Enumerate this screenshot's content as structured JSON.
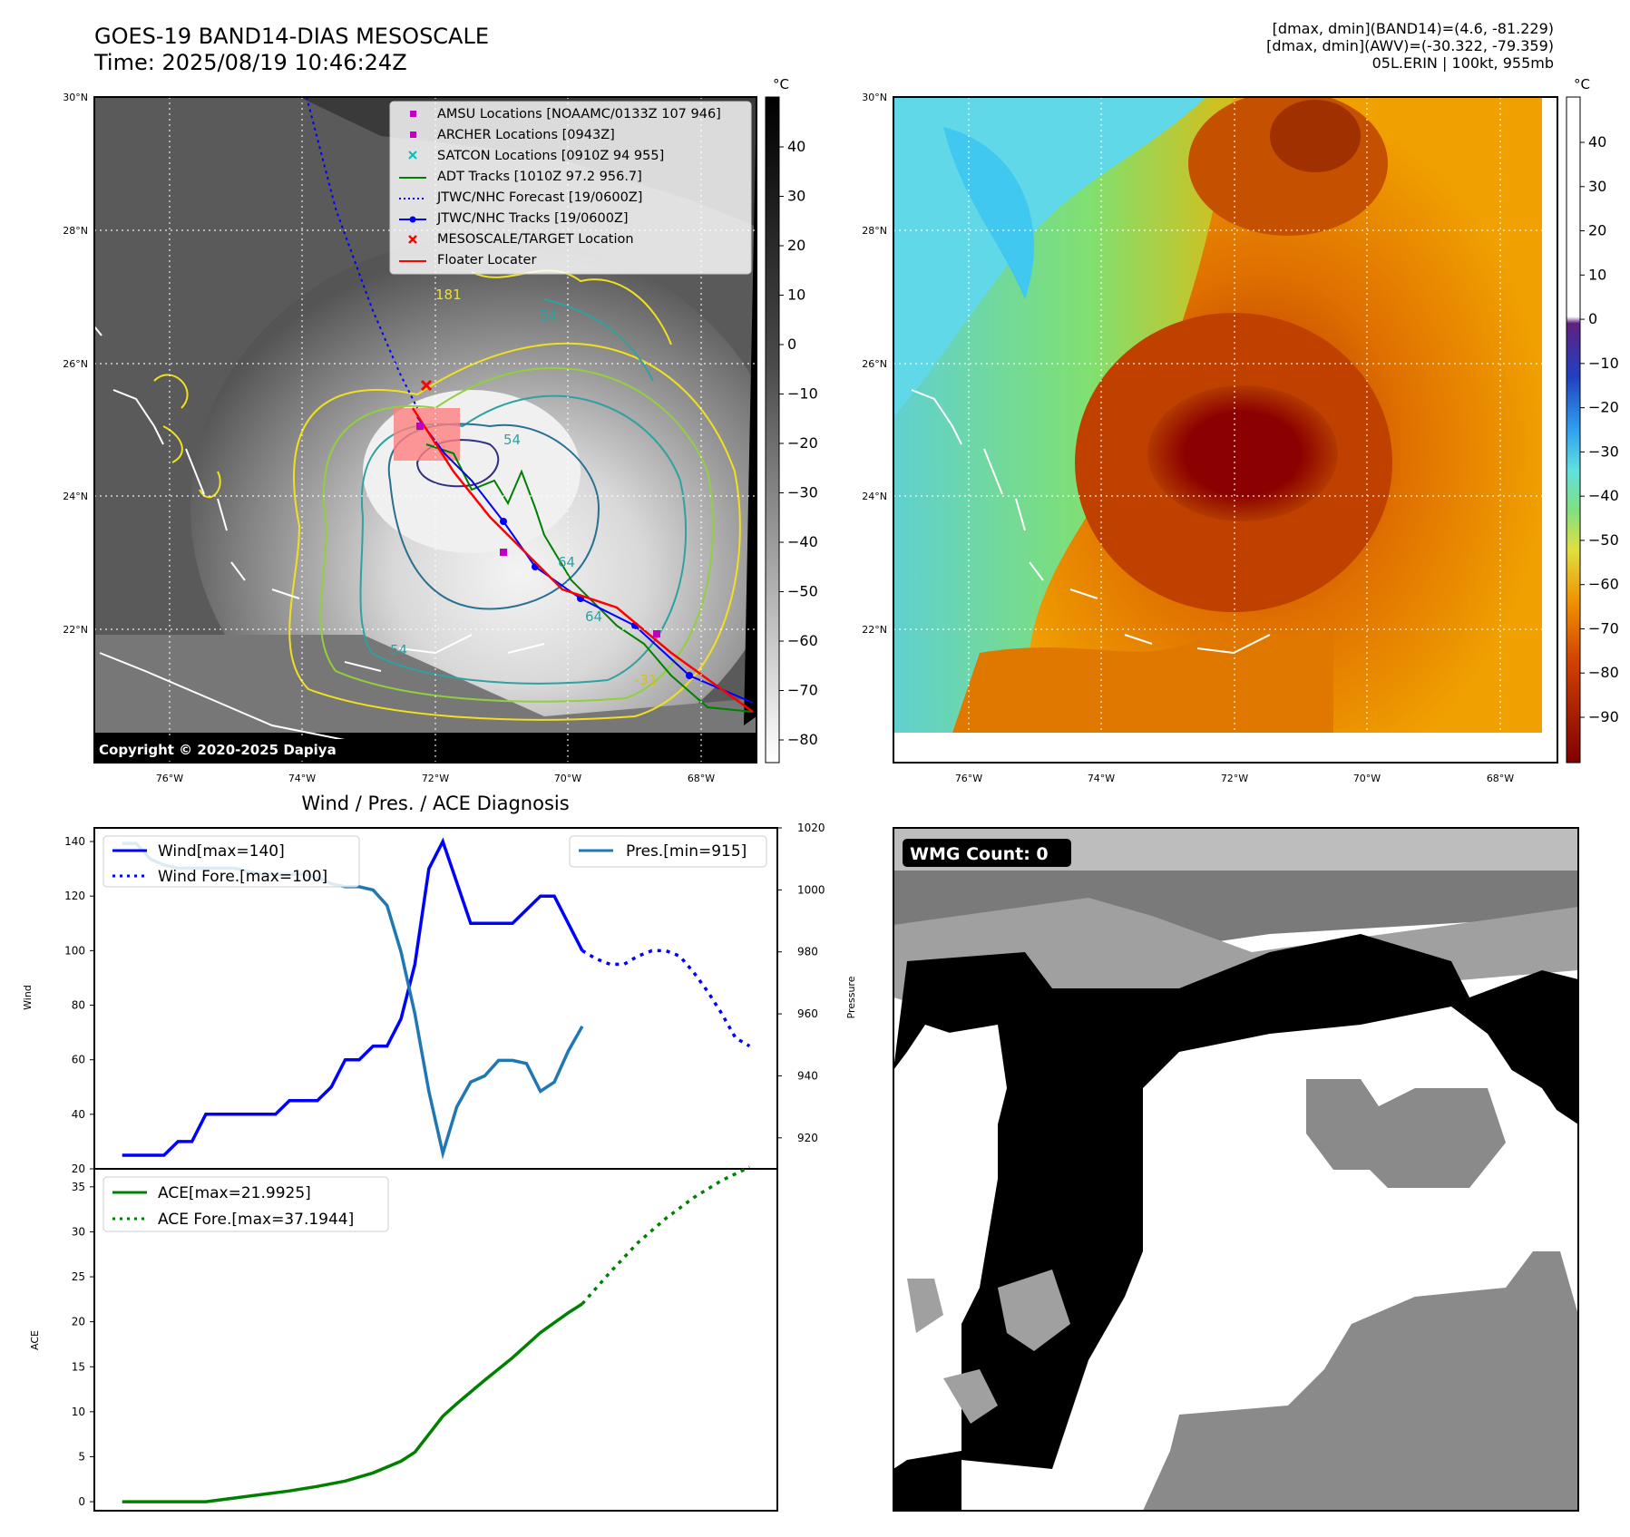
{
  "header": {
    "title_line1": "GOES-19 BAND14-DIAS MESOSCALE",
    "title_line2": "Time: 2025/08/19 10:46:24Z",
    "info_line1": "[dmax, dmin](BAND14)=(4.6, -81.229)",
    "info_line2": "[dmax, dmin](AWV)=(-30.322, -79.359)",
    "info_line3": "05L.ERIN | 100kt, 955mb"
  },
  "map_axes": {
    "lat_labels": [
      "30°N",
      "28°N",
      "26°N",
      "24°N",
      "22°N"
    ],
    "lon_labels": [
      "76°W",
      "74°W",
      "72°W",
      "70°W",
      "68°W"
    ]
  },
  "colorbar_left": {
    "unit": "°C",
    "ticks": [
      "40",
      "30",
      "20",
      "10",
      "0",
      "−10",
      "−20",
      "−30",
      "−40",
      "−50",
      "−60",
      "−70",
      "−80"
    ]
  },
  "colorbar_right": {
    "unit": "°C",
    "ticks": [
      "40",
      "30",
      "20",
      "10",
      "0",
      "−10",
      "−20",
      "−30",
      "−40",
      "−50",
      "−60",
      "−70",
      "−80",
      "−90"
    ]
  },
  "legend_map": [
    {
      "label": "AMSU Locations [NOAAMC/0133Z 107 946]",
      "marker": "square",
      "color": "#c000c0"
    },
    {
      "label": "ARCHER Locations [0943Z]",
      "marker": "square",
      "color": "#c000c0"
    },
    {
      "label": "SATCON Locations [0910Z 94 955]",
      "marker": "x",
      "color": "#00c0c0"
    },
    {
      "label": "ADT Tracks [1010Z 97.2 956.7]",
      "marker": "line",
      "color": "#008000"
    },
    {
      "label": "JTWC/NHC Forecast [19/0600Z]",
      "marker": "dotted",
      "color": "#0000ff"
    },
    {
      "label": "JTWC/NHC Tracks [19/0600Z]",
      "marker": "line-dot",
      "color": "#0000ff"
    },
    {
      "label": "MESOSCALE/TARGET Location",
      "marker": "x",
      "color": "#ff0000"
    },
    {
      "label": "Floater Locater",
      "marker": "line",
      "color": "#ff0000"
    }
  ],
  "contour_labels": [
    "54",
    "54",
    "64",
    "64",
    "54",
    "-31",
    "181"
  ],
  "copyright": "Copyright © 2020-2025 Dapiya",
  "diagnosis_title": "Wind / Pres. / ACE Diagnosis",
  "wmg_label": "WMG Count: 0",
  "colors": {
    "wind": "#0000ff",
    "pressure": "#1f77b4",
    "ace": "#008000",
    "track_red": "#ff0000"
  },
  "chart_data": [
    {
      "type": "line",
      "title": "",
      "ylabel": "Wind",
      "ylim": [
        20,
        145
      ],
      "yticks": [
        20,
        40,
        60,
        80,
        100,
        120,
        140
      ],
      "legend": "top-left",
      "series": [
        {
          "name": "Wind[max=140]",
          "style": "solid",
          "x": [
            0,
            1,
            2,
            3,
            4,
            5,
            6,
            7,
            8,
            9,
            10,
            11,
            12,
            13,
            14,
            15,
            16,
            17,
            18,
            19,
            20,
            21,
            22,
            23,
            24,
            25,
            26,
            27,
            28,
            29,
            30,
            31,
            32,
            33,
            34,
            35,
            36
          ],
          "values": [
            25,
            25,
            25,
            25,
            30,
            30,
            40,
            40,
            40,
            40,
            40,
            40,
            45,
            45,
            45,
            50,
            60,
            60,
            65,
            65,
            75,
            95,
            130,
            140,
            125,
            110,
            110,
            110,
            110,
            115,
            120,
            120,
            110,
            100,
            null,
            null,
            null
          ]
        },
        {
          "name": "Wind Fore.[max=100]",
          "style": "dotted",
          "x": [
            33,
            34,
            35,
            36,
            37,
            38,
            39,
            40,
            41,
            42,
            43,
            44,
            45
          ],
          "values": [
            100,
            97,
            95,
            95,
            98,
            100,
            100,
            98,
            92,
            85,
            77,
            68,
            65
          ]
        }
      ]
    },
    {
      "type": "line",
      "title": "",
      "ylabel": "Pressure",
      "ylim": [
        910,
        1020
      ],
      "yticks": [
        920,
        940,
        960,
        980,
        1000,
        1020
      ],
      "legend": "top-right",
      "series": [
        {
          "name": "Pres.[min=915]",
          "style": "solid",
          "x": [
            0,
            1,
            2,
            3,
            4,
            5,
            6,
            7,
            8,
            9,
            10,
            11,
            12,
            13,
            14,
            15,
            16,
            17,
            18,
            19,
            20,
            21,
            22,
            23,
            24,
            25,
            26,
            27,
            28,
            29,
            30,
            31,
            32,
            33
          ],
          "values": [
            1015,
            1015,
            1010,
            1008,
            1007,
            1007,
            1007,
            1007,
            1007,
            1006,
            1005,
            1005,
            1005,
            1005,
            1004,
            1002,
            1001,
            1001,
            1000,
            995,
            980,
            960,
            935,
            915,
            930,
            938,
            940,
            945,
            945,
            944,
            935,
            938,
            948,
            956
          ]
        }
      ]
    },
    {
      "type": "line",
      "title": "",
      "ylabel": "ACE",
      "ylim": [
        -1,
        37
      ],
      "yticks": [
        0,
        5,
        10,
        15,
        20,
        25,
        30,
        35
      ],
      "legend": "top-left",
      "series": [
        {
          "name": "ACE[max=21.9925]",
          "style": "solid",
          "x": [
            0,
            2,
            4,
            6,
            8,
            10,
            12,
            14,
            16,
            18,
            20,
            21,
            22,
            23,
            24,
            26,
            28,
            30,
            32,
            33
          ],
          "values": [
            0,
            0,
            0,
            0,
            0.4,
            0.8,
            1.2,
            1.7,
            2.3,
            3.2,
            4.5,
            5.5,
            7.5,
            9.5,
            10.9,
            13.5,
            16.0,
            18.8,
            21.0,
            21.99
          ]
        },
        {
          "name": "ACE Fore.[max=37.1944]",
          "style": "dotted",
          "x": [
            33,
            35,
            37,
            39,
            41,
            43,
            45
          ],
          "values": [
            21.99,
            25.5,
            28.8,
            31.5,
            33.8,
            35.7,
            37.19
          ]
        }
      ]
    }
  ]
}
